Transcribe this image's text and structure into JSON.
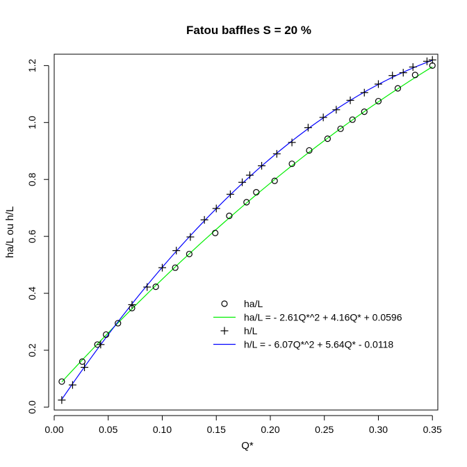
{
  "chart_data": {
    "type": "scatter",
    "title": "Fatou baffles S = 20 %",
    "xlabel": "Q*",
    "ylabel": "ha/L ou h/L",
    "xlim": [
      0.0,
      0.355
    ],
    "ylim": [
      -0.01,
      1.24
    ],
    "xticks": [
      0.0,
      0.05,
      0.1,
      0.15,
      0.2,
      0.25,
      0.3,
      0.35
    ],
    "xtick_labels": [
      "0.00",
      "0.05",
      "0.10",
      "0.15",
      "0.20",
      "0.25",
      "0.30",
      "0.35"
    ],
    "yticks": [
      0.0,
      0.2,
      0.4,
      0.6,
      0.8,
      1.0,
      1.2
    ],
    "ytick_labels": [
      "0.0",
      "0.2",
      "0.4",
      "0.6",
      "0.8",
      "1.0",
      "1.2"
    ],
    "grid": false,
    "legend_position": "bottom-right",
    "series": [
      {
        "name": "ha/L",
        "kind": "points",
        "marker": "circle",
        "color": "#000000",
        "x": [
          0.007,
          0.026,
          0.04,
          0.048,
          0.059,
          0.072,
          0.094,
          0.112,
          0.125,
          0.149,
          0.162,
          0.178,
          0.187,
          0.204,
          0.22,
          0.236,
          0.253,
          0.265,
          0.276,
          0.287,
          0.3,
          0.318,
          0.334,
          0.35
        ],
        "y": [
          0.09,
          0.16,
          0.22,
          0.255,
          0.295,
          0.348,
          0.423,
          0.49,
          0.538,
          0.612,
          0.672,
          0.72,
          0.755,
          0.795,
          0.855,
          0.902,
          0.943,
          0.978,
          1.01,
          1.038,
          1.075,
          1.12,
          1.167,
          1.2
        ]
      },
      {
        "name": "ha/L = - 2.61Q*^2 + 4.16Q* + 0.0596",
        "kind": "line",
        "color": "#00ee00",
        "coefficients": [
          -2.61,
          4.16,
          0.0596
        ],
        "x_range": [
          0.007,
          0.35
        ]
      },
      {
        "name": "h/L",
        "kind": "points",
        "marker": "plus",
        "color": "#000000",
        "x": [
          0.007,
          0.017,
          0.028,
          0.043,
          0.072,
          0.086,
          0.1,
          0.113,
          0.126,
          0.139,
          0.15,
          0.163,
          0.174,
          0.181,
          0.192,
          0.206,
          0.22,
          0.235,
          0.249,
          0.261,
          0.274,
          0.287,
          0.3,
          0.313,
          0.323,
          0.332,
          0.345,
          0.35
        ],
        "y": [
          0.025,
          0.078,
          0.14,
          0.22,
          0.36,
          0.422,
          0.49,
          0.55,
          0.598,
          0.658,
          0.698,
          0.748,
          0.79,
          0.815,
          0.848,
          0.89,
          0.93,
          0.982,
          1.018,
          1.045,
          1.078,
          1.105,
          1.135,
          1.165,
          1.175,
          1.195,
          1.215,
          1.22
        ]
      },
      {
        "name": "h/L = - 6.07Q*^2 + 5.64Q* - 0.0118",
        "kind": "line",
        "color": "#0000ff",
        "coefficients": [
          -6.07,
          5.64,
          -0.0118
        ],
        "x_range": [
          0.007,
          0.35
        ]
      }
    ]
  }
}
